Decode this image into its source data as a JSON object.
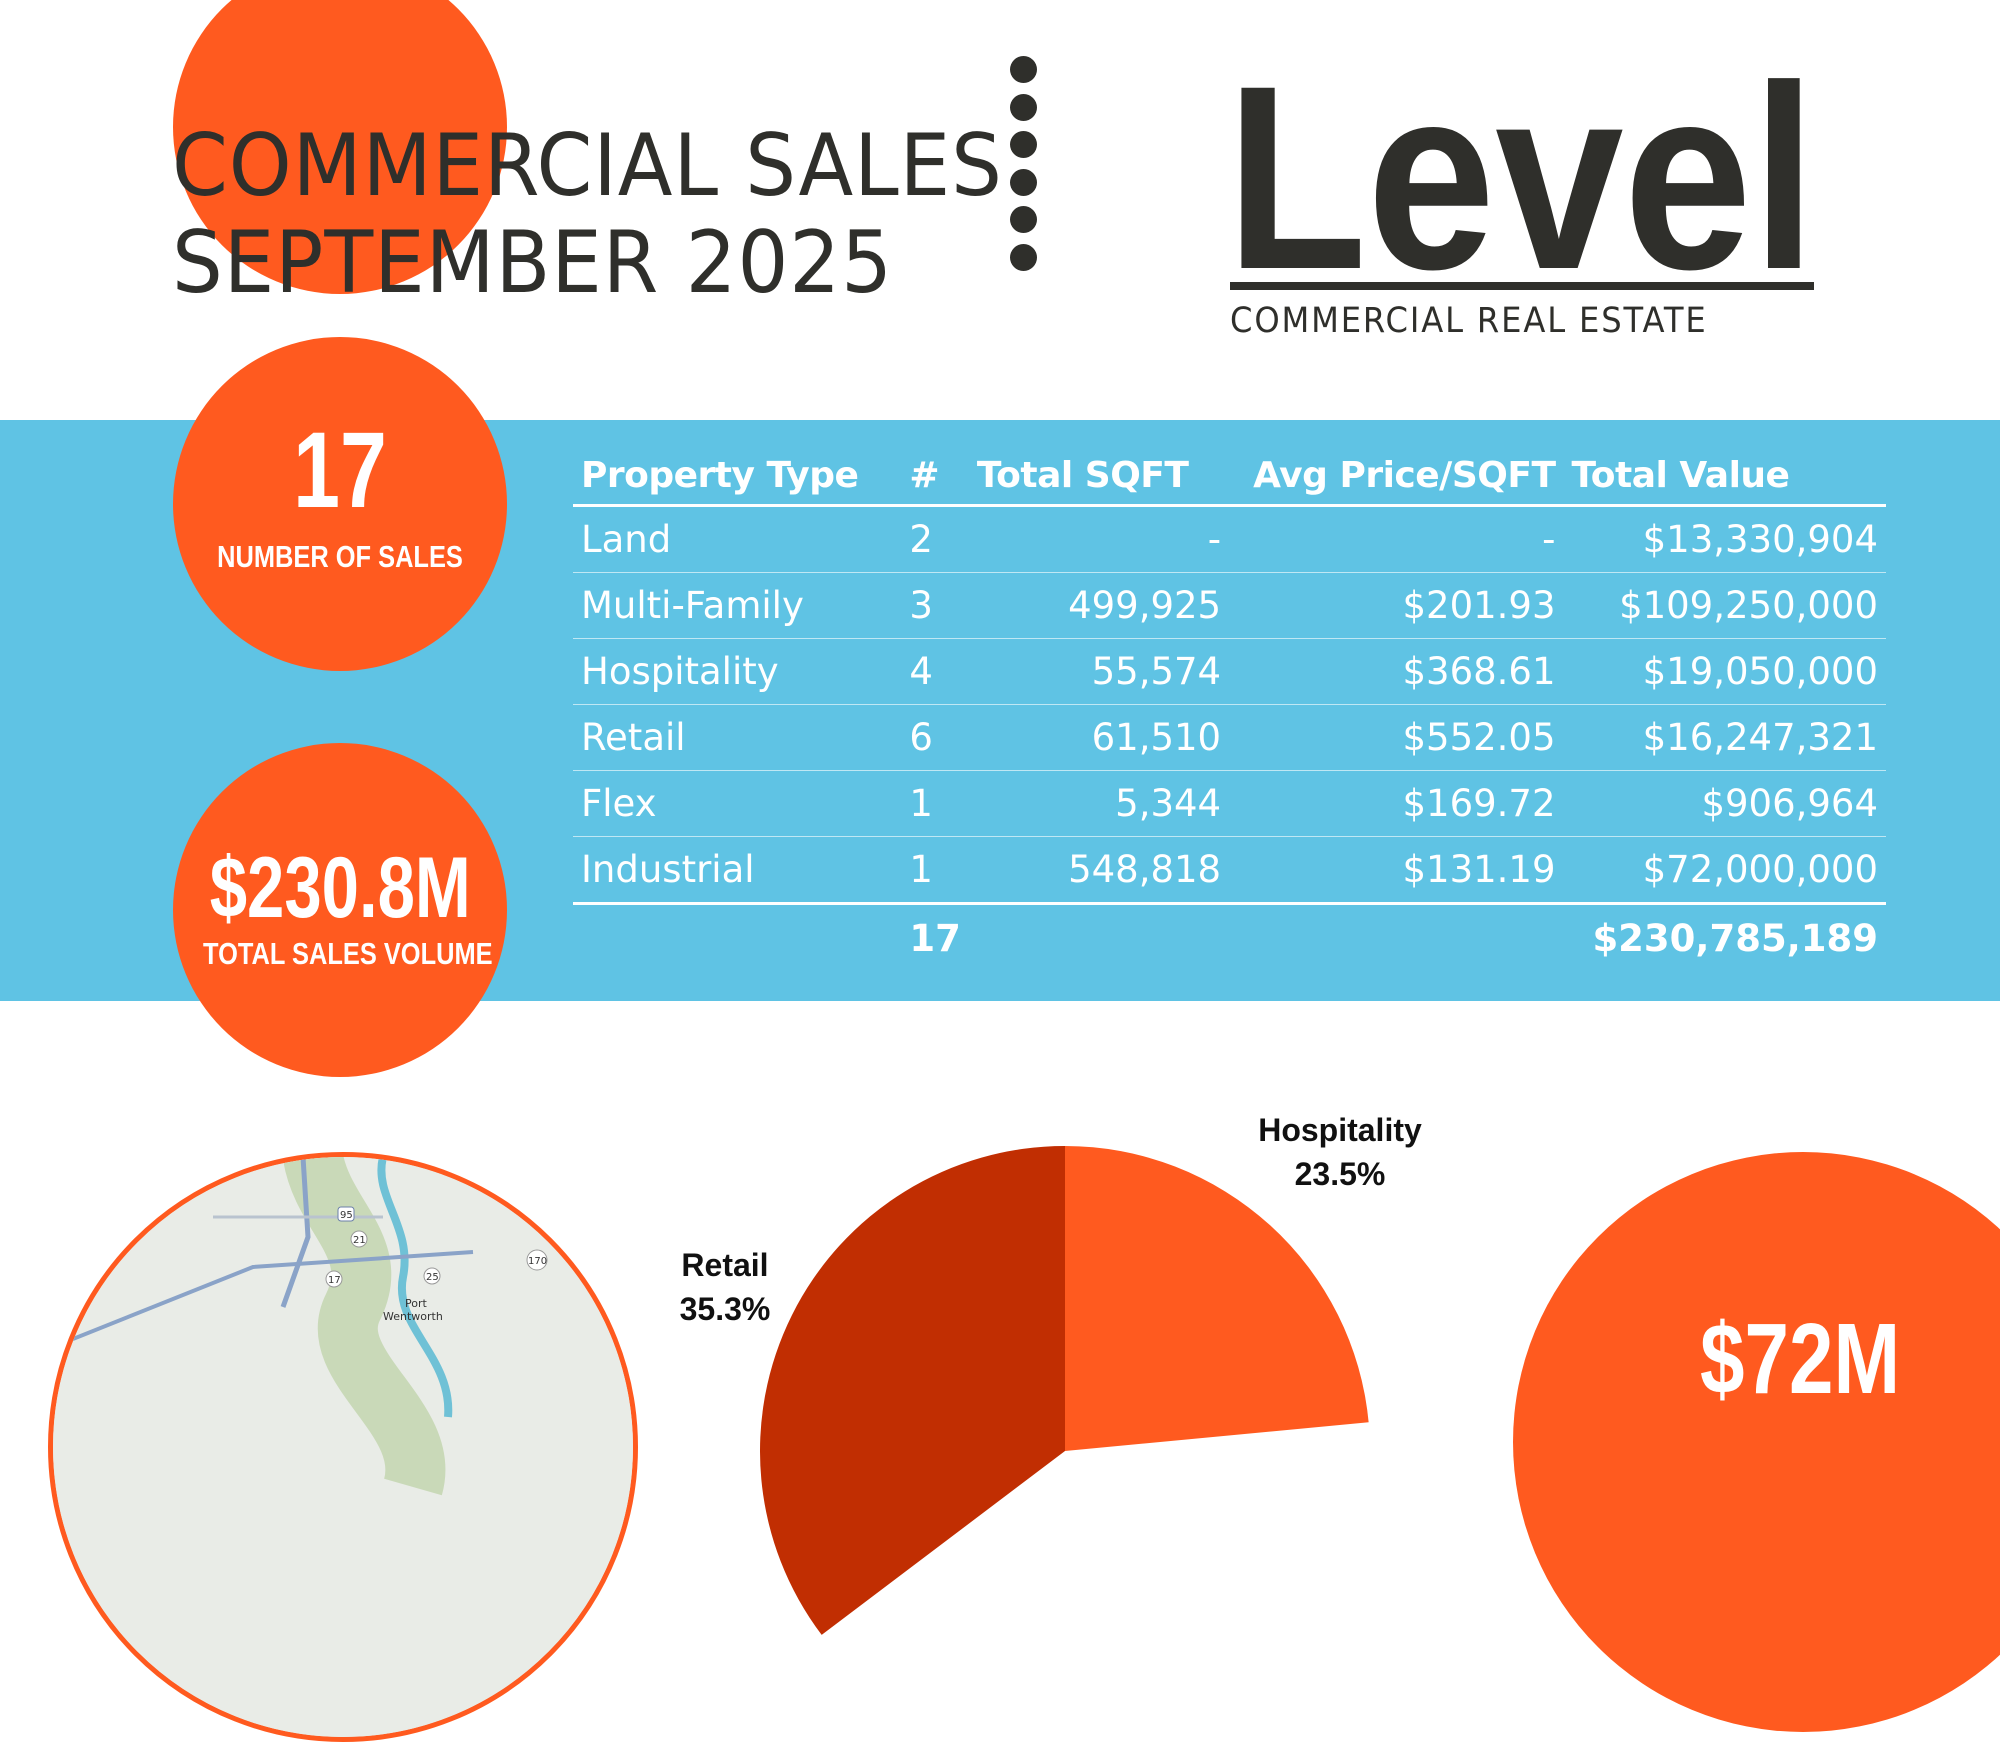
{
  "header": {
    "title_line1": "COMMERCIAL SALES",
    "title_line2": "SEPTEMBER 2025"
  },
  "logo": {
    "word": "Level",
    "tagline": "COMMERCIAL REAL ESTATE"
  },
  "stats": {
    "number_of_sales": {
      "value": "17",
      "label": "NUMBER OF SALES"
    },
    "total_sales_volume": {
      "value": "$230.8M",
      "label": "TOTAL SALES VOLUME"
    }
  },
  "table": {
    "headers": {
      "property_type": "Property Type",
      "count": "#",
      "total_sqft": "Total SQFT",
      "avg_price_sqft": "Avg Price/SQFT",
      "total_value": "Total Value"
    },
    "rows": [
      {
        "type": "Land",
        "count": "2",
        "sqft": "-",
        "avg": "-",
        "value": "$13,330,904"
      },
      {
        "type": "Multi-Family",
        "count": "3",
        "sqft": "499,925",
        "avg": "$201.93",
        "value": "$109,250,000"
      },
      {
        "type": "Hospitality",
        "count": "4",
        "sqft": "55,574",
        "avg": "$368.61",
        "value": "$19,050,000"
      },
      {
        "type": "Retail",
        "count": "6",
        "sqft": "61,510",
        "avg": "$552.05",
        "value": "$16,247,321"
      },
      {
        "type": "Flex",
        "count": "1",
        "sqft": "5,344",
        "avg": "$169.72",
        "value": "$906,964"
      },
      {
        "type": "Industrial",
        "count": "1",
        "sqft": "548,818",
        "avg": "$131.19",
        "value": "$72,000,000"
      }
    ],
    "totals": {
      "count": "17",
      "value": "$230,785,189"
    }
  },
  "pie": {
    "hospitality": {
      "label": "Hospitality",
      "percent": "23.5%"
    },
    "retail": {
      "label": "Retail",
      "percent": "35.3%"
    },
    "colors": {
      "hospitality": "#ff5a1f",
      "retail": "#c12e02"
    }
  },
  "map": {
    "labels": [
      "95",
      "21",
      "17",
      "25",
      "170",
      "Port",
      "Wentworth"
    ]
  },
  "big_circle": {
    "value": "$72M"
  },
  "colors": {
    "accent_orange": "#ff5a1f",
    "band_blue": "#5fc3e4",
    "dark_text": "#2f2f2b"
  }
}
